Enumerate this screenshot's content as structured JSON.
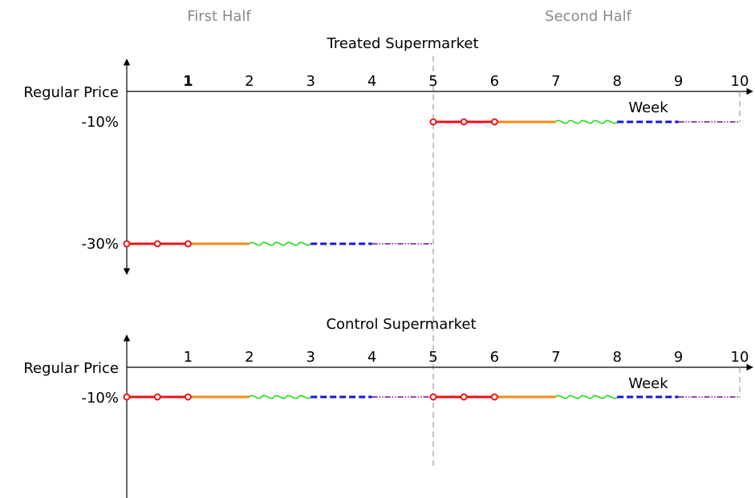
{
  "header": {
    "first_half": "First Half",
    "second_half": "Second Half"
  },
  "panels": [
    {
      "title": "Treated Supermarket",
      "y_labels": {
        "regular": "Regular Price",
        "minus10": "-10%",
        "minus30": "-30%"
      },
      "x_axis_label": "Week",
      "ticks": [
        "1",
        "2",
        "3",
        "4",
        "5",
        "6",
        "7",
        "8",
        "9",
        "10"
      ],
      "first_half_level": "-30%",
      "second_half_level": "-10%"
    },
    {
      "title": "Control Supermarket",
      "y_labels": {
        "regular": "Regular Price",
        "minus10": "-10%"
      },
      "x_axis_label": "Week",
      "ticks": [
        "1",
        "2",
        "3",
        "4",
        "5",
        "6",
        "7",
        "8",
        "9",
        "10"
      ],
      "first_half_level": "-10%",
      "second_half_level": "-10%"
    }
  ],
  "segment_colors": {
    "red": "#e8141a",
    "orange": "#f28a1a",
    "green": "#22dd22",
    "blue": "#1414d8",
    "purple": "#8a2a9a"
  }
}
